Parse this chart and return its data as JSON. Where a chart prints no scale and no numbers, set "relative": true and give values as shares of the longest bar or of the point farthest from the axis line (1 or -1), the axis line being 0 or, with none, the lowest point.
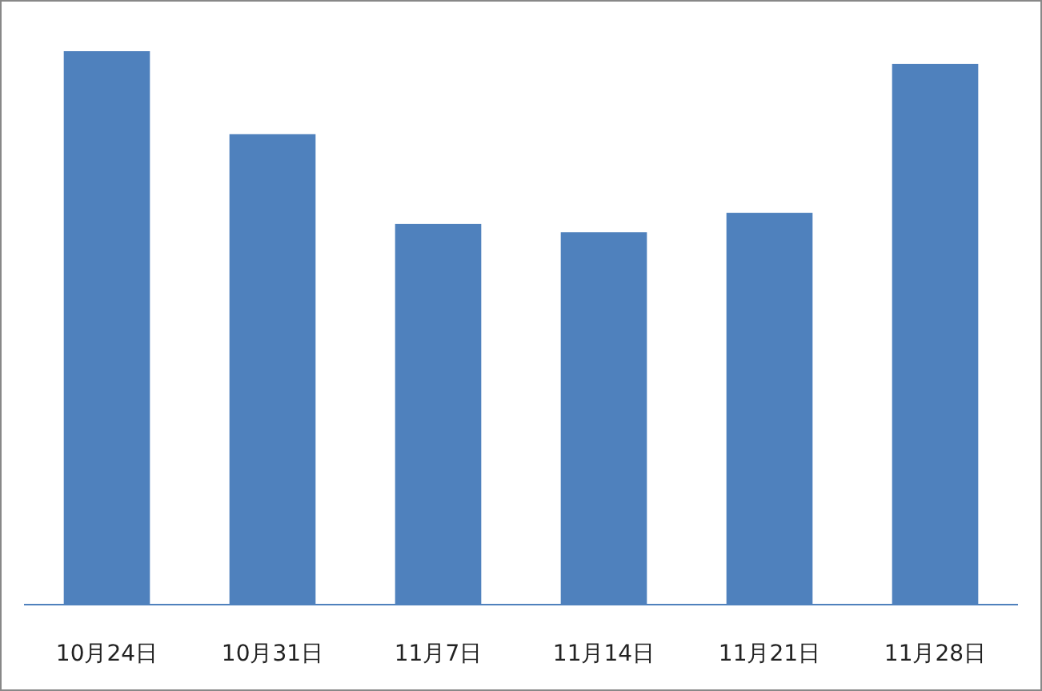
{
  "chart_data": {
    "type": "bar",
    "relative": true,
    "categories": [
      "10月24日",
      "10月31日",
      "11月7日",
      "11月14日",
      "11月21日",
      "11月28日"
    ],
    "values": [
      1,
      0.85,
      0.688,
      0.673,
      0.708,
      0.977
    ],
    "color": "#4f81bd"
  }
}
